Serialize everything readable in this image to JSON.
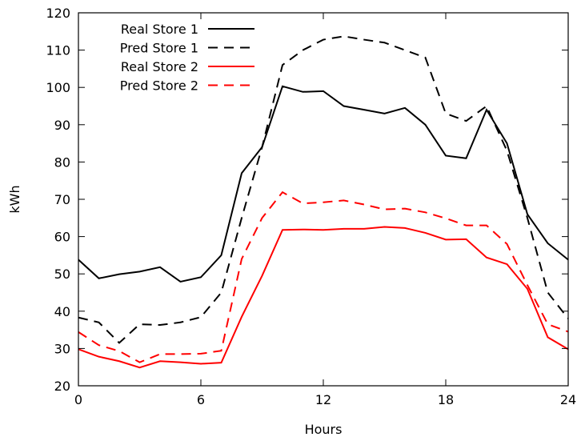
{
  "chart_data": {
    "type": "line",
    "title": "",
    "xlabel": "Hours",
    "ylabel": "kWh",
    "xlim": [
      0,
      24
    ],
    "ylim": [
      20,
      120
    ],
    "xticks": [
      0,
      6,
      12,
      18,
      24
    ],
    "yticks": [
      20,
      30,
      40,
      50,
      60,
      70,
      80,
      90,
      100,
      110,
      120
    ],
    "grid": false,
    "legend_position": "top-left",
    "x": [
      0,
      1,
      2,
      3,
      4,
      5,
      6,
      7,
      8,
      9,
      10,
      11,
      12,
      13,
      14,
      15,
      16,
      17,
      18,
      19,
      20,
      21,
      22,
      23,
      24
    ],
    "series": [
      {
        "name": "Real Store 1",
        "color": "#000000",
        "dash": "solid",
        "values": [
          53.8,
          48.8,
          49.9,
          50.6,
          51.8,
          47.9,
          49.1,
          55.0,
          77.0,
          84.0,
          100.3,
          98.8,
          99.0,
          95.0,
          94.0,
          93.0,
          94.5,
          90.0,
          81.7,
          81.0,
          94.0,
          85.0,
          66.0,
          58.2,
          53.8
        ]
      },
      {
        "name": "Pred Store 1",
        "color": "#000000",
        "dash": "dashed",
        "values": [
          38.3,
          37.0,
          31.5,
          36.5,
          36.3,
          37.0,
          38.4,
          45.0,
          65.0,
          84.0,
          106.0,
          110.0,
          112.8,
          113.7,
          112.8,
          112.0,
          110.0,
          108.0,
          93.0,
          91.0,
          95.0,
          83.0,
          65.0,
          45.0,
          38.0
        ]
      },
      {
        "name": "Real Store 2",
        "color": "#ff0000",
        "dash": "solid",
        "values": [
          29.8,
          27.8,
          26.6,
          24.9,
          26.6,
          26.3,
          25.9,
          26.2,
          38.5,
          49.5,
          61.8,
          61.9,
          61.8,
          62.1,
          62.1,
          62.6,
          62.3,
          61.0,
          59.2,
          59.3,
          54.4,
          52.6,
          46.0,
          33.0,
          29.8
        ]
      },
      {
        "name": "Pred Store 2",
        "color": "#ff0000",
        "dash": "dashed",
        "values": [
          34.4,
          30.9,
          29.3,
          26.3,
          28.5,
          28.5,
          28.6,
          29.4,
          54.0,
          65.0,
          71.9,
          68.9,
          69.2,
          69.7,
          68.6,
          67.3,
          67.5,
          66.5,
          64.9,
          63.0,
          63.0,
          58.0,
          47.0,
          36.5,
          34.5
        ]
      }
    ]
  }
}
